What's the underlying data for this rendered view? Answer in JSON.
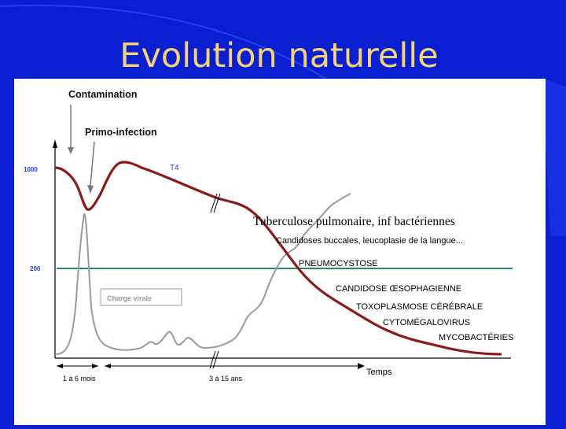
{
  "slide": {
    "title": "Evolution naturelle",
    "background_color": "#0a1fd0",
    "title_color": "#f3d27a"
  },
  "chart_data": {
    "type": "line",
    "title": "",
    "x_axis_label": "Temps",
    "x_range_labels": [
      "1 à 6 mois",
      "3 à 15 ans"
    ],
    "y_tick_labels": [
      "1000",
      "200"
    ],
    "threshold": {
      "value": 200,
      "color": "#2e8b57"
    },
    "series": [
      {
        "name": "T4",
        "color": "#8b1a1a"
      },
      {
        "name": "Charge virale",
        "color": "#9a9a9a"
      }
    ],
    "event_labels": {
      "contamination": "Contamination",
      "primo_infection": "Primo-infection"
    },
    "infections": [
      "Tuberculose pulmonaire, inf bactériennes",
      "Candidoses buccales, leucoplasie de la langue...",
      "PNEUMOCYSTOSE",
      "CANDIDOSE ŒSOPHAGIENNE",
      "TOXOPLASMOSE CÉRÉBRALE",
      "CYTOMÉGALOVIRUS",
      "MYCOBACTÉRIES"
    ]
  }
}
